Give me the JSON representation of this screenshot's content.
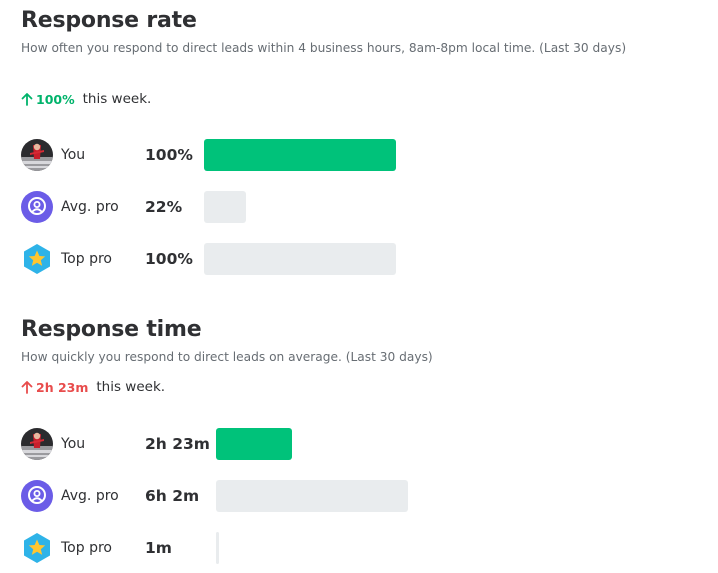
{
  "colors": {
    "bar_you": "#00c27a",
    "bar_other": "#e9ecee",
    "up_good": "#00b36b",
    "up_bad": "#e84c4c",
    "avg_icon_bg": "#6b5ce7",
    "top_icon_bg": "#2eb3e8",
    "top_icon_star": "#ffc630"
  },
  "response_rate": {
    "title": "Response rate",
    "description": "How often you respond to direct leads within 4 business hours, 8am-8pm local time. (Last 30 days)",
    "trend": {
      "direction": "up",
      "icon": "arrow-up-icon",
      "value": "100%",
      "suffix": "this week."
    },
    "rows": [
      {
        "key": "you",
        "label": "You",
        "value": "100%",
        "level": 1.0,
        "avatar": "user-photo"
      },
      {
        "key": "avg",
        "label": "Avg. pro",
        "value": "22%",
        "level": 0.22,
        "avatar": "avg-pro-icon"
      },
      {
        "key": "top",
        "label": "Top pro",
        "value": "100%",
        "level": 1.0,
        "avatar": "top-pro-star-icon"
      }
    ]
  },
  "response_time": {
    "title": "Response time",
    "description": "How quickly you respond to direct leads on average. (Last 30 days)",
    "trend": {
      "direction": "up",
      "icon": "arrow-up-icon",
      "value": "2h 23m",
      "suffix": "this week."
    },
    "rows": [
      {
        "key": "you",
        "label": "You",
        "value": "2h 23m",
        "minutes": 143,
        "avatar": "user-photo"
      },
      {
        "key": "avg",
        "label": "Avg. pro",
        "value": "6h 2m",
        "minutes": 362,
        "avatar": "avg-pro-icon"
      },
      {
        "key": "top",
        "label": "Top pro",
        "value": "1m",
        "minutes": 1,
        "avatar": "top-pro-star-icon"
      }
    ]
  }
}
